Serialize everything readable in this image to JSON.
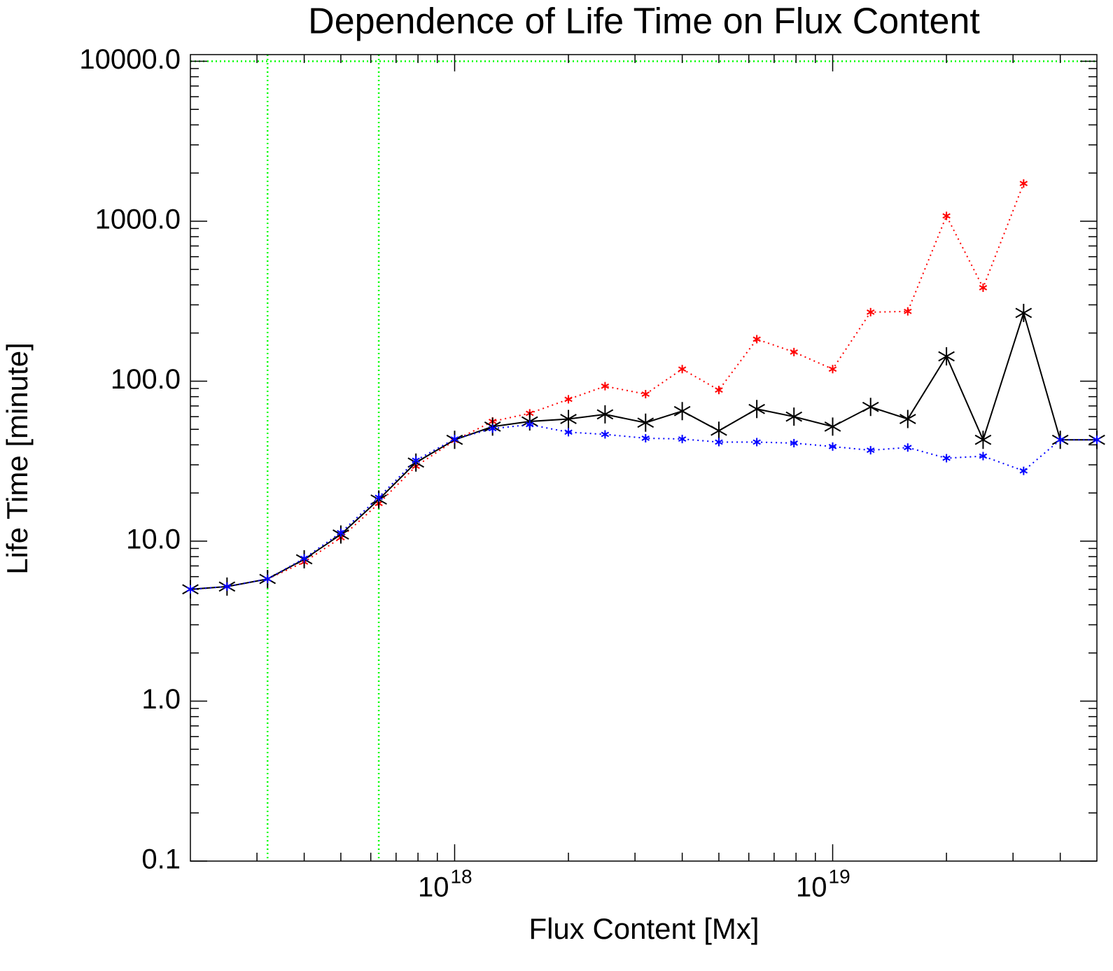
{
  "chart_data": {
    "type": "line",
    "title": "Dependence of Life Time on Flux Content",
    "xlabel": "Flux Content [Mx]",
    "ylabel": "Life Time [minute]",
    "xlog": true,
    "ylog": true,
    "xlim": [
      2e+17,
      5e+19
    ],
    "ylim": [
      0.1,
      11000
    ],
    "xticks": [
      {
        "value": 1e+18,
        "label": "10",
        "exponent": "18"
      },
      {
        "value": 1e+19,
        "label": "10",
        "exponent": "19"
      }
    ],
    "yticks": [
      0.1,
      {
        "value": 1,
        "label": "1.0"
      },
      {
        "value": 10,
        "label": "10.0"
      },
      {
        "value": 100,
        "label": "100.0"
      },
      {
        "value": 1000,
        "label": "1000.0"
      },
      {
        "value": 10000,
        "label": "10000.0"
      }
    ],
    "reference_lines": {
      "color": "#00ff00",
      "x": [
        3.2e+17,
        6.3e+17
      ],
      "y": [
        10000
      ]
    },
    "x": [
      2e+17,
      2.5e+17,
      3.2e+17,
      4e+17,
      5e+17,
      6.3e+17,
      7.9e+17,
      1e+18,
      1.26e+18,
      1.58e+18,
      2e+18,
      2.5e+18,
      3.2e+18,
      4e+18,
      5e+18,
      6.3e+18,
      7.9e+18,
      1e+19,
      1.26e+19,
      1.58e+19,
      2e+19,
      2.5e+19,
      3.2e+19,
      4e+19,
      5e+19
    ],
    "series": [
      {
        "color": "#ff0000",
        "line_style": "dotted",
        "marker_size": 6,
        "values": [
          5.0,
          5.2,
          5.8,
          7.4,
          10.5,
          17.2,
          29.4,
          42.6,
          56,
          63,
          77,
          93,
          83,
          119,
          88,
          183,
          152,
          119,
          270,
          273,
          1080,
          384,
          1720,
          null,
          null
        ]
      },
      {
        "color": "#000000",
        "line_style": "solid",
        "marker_size": 13,
        "values": [
          5.0,
          5.2,
          5.8,
          7.7,
          11.0,
          18.2,
          31,
          43,
          52,
          56,
          58,
          62,
          55,
          65,
          49,
          67,
          60,
          52,
          69,
          58,
          143,
          43,
          267,
          43,
          43
        ]
      },
      {
        "color": "#0000ff",
        "line_style": "dotted",
        "marker_size": 6,
        "values": [
          5.0,
          5.2,
          5.8,
          7.8,
          11.3,
          18.8,
          32,
          43.5,
          50.5,
          53.5,
          48,
          46.5,
          44,
          43.5,
          41.6,
          41.6,
          41,
          39,
          37,
          38.5,
          33,
          34,
          27.5,
          43,
          43
        ]
      }
    ]
  }
}
